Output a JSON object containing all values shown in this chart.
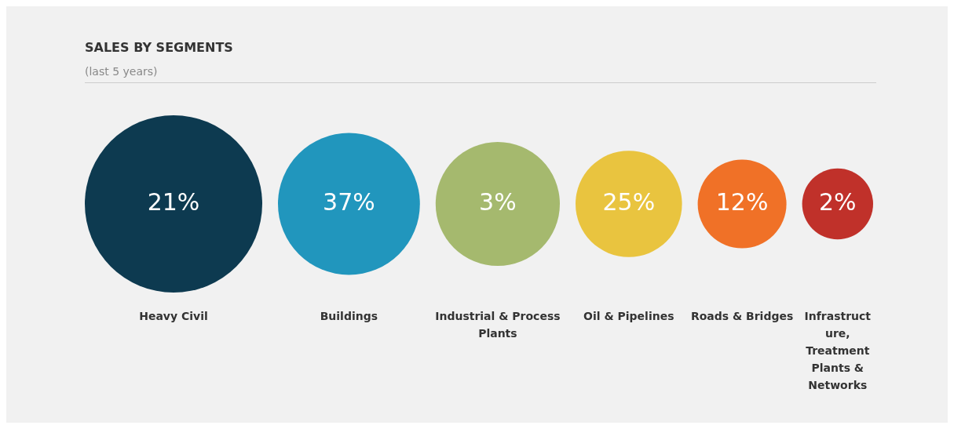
{
  "chart_data": {
    "type": "other",
    "title": "SALES BY SEGMENTS",
    "subtitle": "(last 5 years)",
    "categories": [
      "Heavy Civil",
      "Buildings",
      "Industrial & Process Plants",
      "Oil & Pipelines",
      "Roads & Bridges",
      "Infrastructure, Treatment Plants & Networks"
    ],
    "values": [
      21,
      37,
      3,
      25,
      12,
      2
    ],
    "colors": [
      "#0d3a50",
      "#2196bd",
      "#a5b96e",
      "#e9c43f",
      "#f07127",
      "#c0312a"
    ],
    "value_labels": [
      "21%",
      "37%",
      "3%",
      "25%",
      "12%",
      "2%"
    ],
    "legend": false
  }
}
